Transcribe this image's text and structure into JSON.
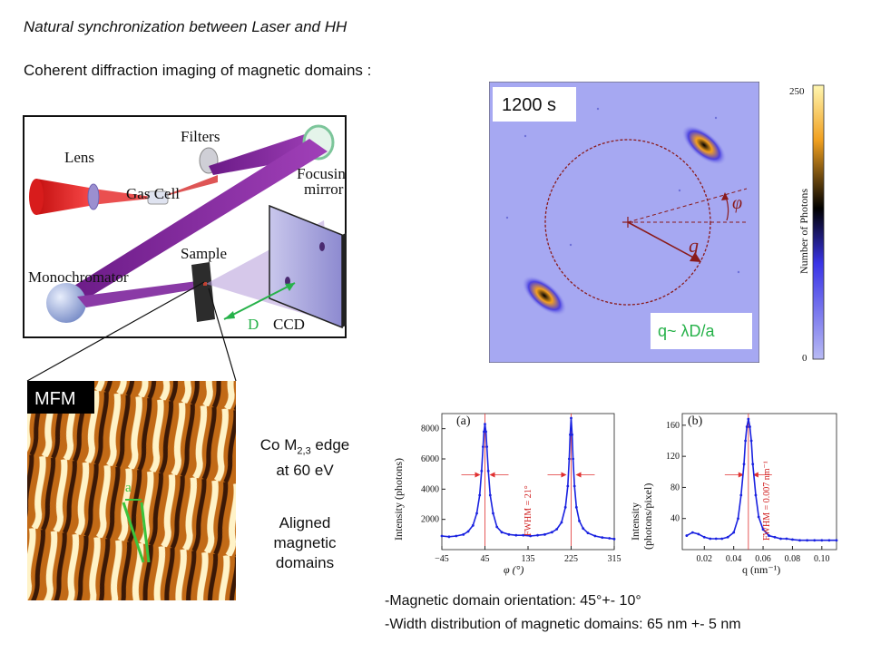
{
  "slide": {
    "title_italic": "Natural synchronization between Laser and HH",
    "subtitle": "Coherent diffraction imaging of magnetic domains :"
  },
  "setup": {
    "lens": "Lens",
    "filters": "Filters",
    "gas_cell": "Gas Cell",
    "focusing_mirror_line1": "Focusing",
    "focusing_mirror_line2": "mirror",
    "sample": "Sample",
    "monochromator": "Monochromator",
    "distance": "D",
    "ccd": "CCD"
  },
  "mfm": {
    "label": "MFM",
    "period_label": "a"
  },
  "side_text": {
    "edge_prefix": "Co M",
    "edge_sub": "2,3",
    "edge_suffix": " edge",
    "energy": "at 60 eV",
    "aligned": "Aligned",
    "magnetic": "magnetic",
    "domains": "domains"
  },
  "diffraction": {
    "exposure": "1200 s",
    "q_formula": "q~ λD/a",
    "phi_symbol": "φ",
    "q_symbol": "q",
    "colorbar_title": "Number of Photons",
    "colorbar_max": "250",
    "colorbar_min": "0"
  },
  "chart_data": [
    {
      "type": "line",
      "panel": "(a)",
      "xlabel": "φ (°)",
      "ylabel": "Intensity (photons)",
      "xticks": [
        "−45",
        "45",
        "135",
        "225",
        "315"
      ],
      "yticks": [
        "2000",
        "4000",
        "6000",
        "8000"
      ],
      "xlim": [
        -45,
        315
      ],
      "ylim": [
        0,
        9000
      ],
      "fwhm_label": "FWHM = 21°",
      "peaks": [
        45,
        225
      ],
      "x": [
        -45,
        -30,
        -15,
        0,
        10,
        20,
        28,
        34,
        38,
        41,
        43,
        45,
        47,
        49,
        52,
        56,
        62,
        70,
        80,
        95,
        110,
        125,
        140,
        155,
        170,
        185,
        195,
        205,
        213,
        218,
        221,
        223,
        225,
        227,
        229,
        232,
        236,
        242,
        250,
        260,
        275,
        290,
        305,
        315
      ],
      "y": [
        900,
        850,
        900,
        1000,
        1200,
        1600,
        2400,
        3600,
        5200,
        6800,
        7800,
        8300,
        7800,
        6800,
        5200,
        3600,
        2400,
        1500,
        1150,
        1000,
        950,
        950,
        900,
        950,
        1000,
        1150,
        1350,
        1800,
        2800,
        4200,
        6000,
        7600,
        8700,
        7600,
        6000,
        4200,
        2800,
        1900,
        1400,
        1100,
        900,
        800,
        750,
        700
      ]
    },
    {
      "type": "line",
      "panel": "(b)",
      "xlabel": "q (nm⁻¹)",
      "ylabel": "Intensity (photons/pixel)",
      "xticks": [
        "0.02",
        "0.04",
        "0.06",
        "0.08",
        "0.10"
      ],
      "yticks": [
        "40",
        "80",
        "120",
        "160"
      ],
      "xlim": [
        0.005,
        0.11
      ],
      "ylim": [
        0,
        175
      ],
      "fwhm_label": "FWHM = 0.007 nm⁻¹",
      "peaks": [
        0.05
      ],
      "x": [
        0.008,
        0.012,
        0.016,
        0.02,
        0.024,
        0.028,
        0.032,
        0.036,
        0.04,
        0.043,
        0.045,
        0.047,
        0.048,
        0.049,
        0.05,
        0.051,
        0.052,
        0.053,
        0.055,
        0.057,
        0.06,
        0.064,
        0.068,
        0.072,
        0.076,
        0.08,
        0.085,
        0.09,
        0.095,
        0.1,
        0.105,
        0.11
      ],
      "y": [
        18,
        22,
        20,
        16,
        14,
        14,
        14,
        16,
        22,
        40,
        70,
        110,
        140,
        158,
        168,
        158,
        140,
        110,
        70,
        42,
        26,
        18,
        16,
        14,
        14,
        13,
        12,
        12,
        12,
        12,
        12,
        12
      ]
    }
  ],
  "bottom": {
    "line1": "-Magnetic domain orientation: 45°+- 10°",
    "line2": "-Width distribution of magnetic domains: 65 nm +- 5 nm"
  }
}
